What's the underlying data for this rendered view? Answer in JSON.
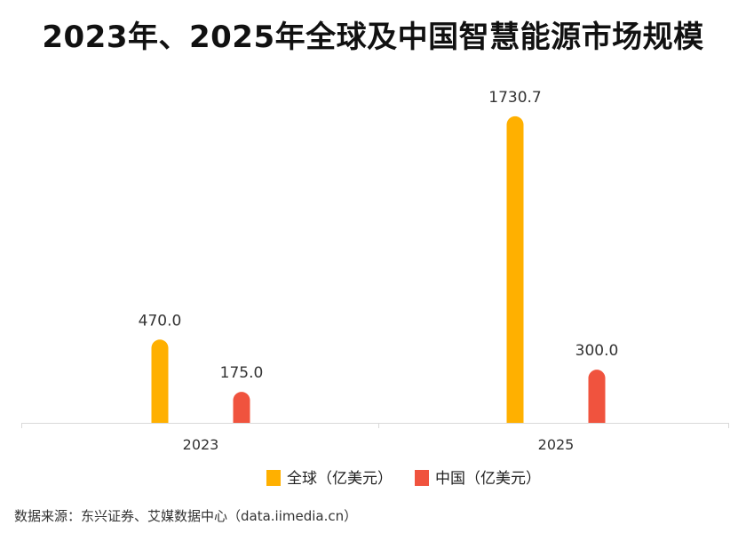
{
  "chart_data": {
    "type": "bar",
    "title": "2023年、2025年全球及中国智慧能源市场规模",
    "categories": [
      "2023",
      "2025"
    ],
    "series": [
      {
        "name": "全球（亿美元）",
        "values": [
          470.0,
          1730.7
        ],
        "color": "#FFB000"
      },
      {
        "name": "中国（亿美元）",
        "values": [
          175.0,
          300.0
        ],
        "color": "#F0533E"
      }
    ],
    "ylim": [
      0,
      1750
    ],
    "grid": false,
    "legend_position": "bottom-center",
    "value_format_decimals": 1
  },
  "source": "数据来源：东兴证券、艾媒数据中心（data.iimedia.cn）"
}
